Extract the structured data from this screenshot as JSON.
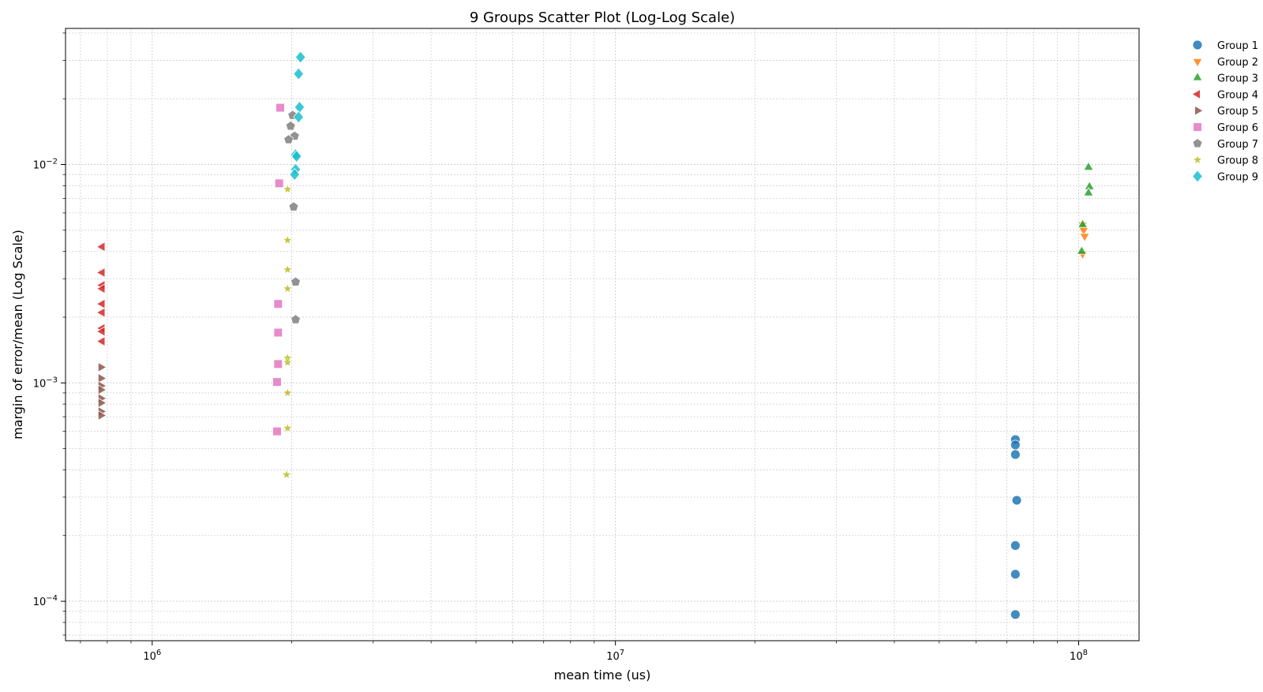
{
  "chart_data": {
    "type": "scatter",
    "title": "9 Groups Scatter Plot (Log-Log Scale)",
    "xlabel": "mean time (us)",
    "ylabel": "margin of error/mean (Log Scale)",
    "xscale": "log",
    "yscale": "log",
    "xlim": [
      650000,
      135000000
    ],
    "ylim": [
      6.6e-05,
      0.042
    ],
    "xticks": [
      {
        "value": 1000000,
        "base": "10",
        "exp": "6"
      },
      {
        "value": 10000000,
        "base": "10",
        "exp": "7"
      },
      {
        "value": 100000000,
        "base": "10",
        "exp": "8"
      }
    ],
    "yticks": [
      {
        "value": 0.0001,
        "base": "10",
        "exp": "−4"
      },
      {
        "value": 0.001,
        "base": "10",
        "exp": "−3"
      },
      {
        "value": 0.01,
        "base": "10",
        "exp": "−2"
      }
    ],
    "grid": true,
    "legend_position": "outside-right",
    "series": [
      {
        "name": "Group 1",
        "color": "#1f77b4",
        "marker": "circle",
        "points": [
          [
            73000000,
            0.00055
          ],
          [
            73000000,
            0.00052
          ],
          [
            73000000,
            0.00047
          ],
          [
            73500000,
            0.00029
          ],
          [
            73000000,
            0.00018
          ],
          [
            73000000,
            0.000133
          ],
          [
            73000000,
            8.7e-05
          ]
        ]
      },
      {
        "name": "Group 2",
        "color": "#ff7f0e",
        "marker": "triangle-down",
        "points": [
          [
            102000000,
            0.0053
          ],
          [
            102500000,
            0.005
          ],
          [
            103000000,
            0.0047
          ],
          [
            102000000,
            0.0039
          ]
        ]
      },
      {
        "name": "Group 3",
        "color": "#2ca02c",
        "marker": "triangle-up",
        "points": [
          [
            105000000,
            0.0097
          ],
          [
            105500000,
            0.0079
          ],
          [
            105000000,
            0.0074
          ],
          [
            102000000,
            0.0053
          ],
          [
            101500000,
            0.004
          ]
        ]
      },
      {
        "name": "Group 4",
        "color": "#d62728",
        "marker": "triangle-left",
        "points": [
          [
            780000,
            0.0042
          ],
          [
            780000,
            0.0032
          ],
          [
            780000,
            0.0028
          ],
          [
            780000,
            0.0027
          ],
          [
            780000,
            0.0023
          ],
          [
            780000,
            0.0021
          ],
          [
            780000,
            0.00178
          ],
          [
            780000,
            0.00172
          ],
          [
            780000,
            0.00155
          ]
        ]
      },
      {
        "name": "Group 5",
        "color": "#8c564b",
        "marker": "triangle-right",
        "points": [
          [
            775000,
            0.00118
          ],
          [
            775000,
            0.00105
          ],
          [
            775000,
            0.00097
          ],
          [
            775000,
            0.00093
          ],
          [
            775000,
            0.00085
          ],
          [
            775000,
            0.00081
          ],
          [
            775000,
            0.00074
          ],
          [
            775000,
            0.00071
          ]
        ]
      },
      {
        "name": "Group 6",
        "color": "#e377c2",
        "marker": "square",
        "points": [
          [
            1890000,
            0.0182
          ],
          [
            1880000,
            0.0082
          ],
          [
            1870000,
            0.0023
          ],
          [
            1870000,
            0.0017
          ],
          [
            1870000,
            0.00122
          ],
          [
            1860000,
            0.00101
          ],
          [
            1860000,
            0.0006
          ]
        ]
      },
      {
        "name": "Group 7",
        "color": "#7f7f7f",
        "marker": "pentagon",
        "points": [
          [
            2010000,
            0.0168
          ],
          [
            1990000,
            0.015
          ],
          [
            2030000,
            0.0135
          ],
          [
            1970000,
            0.013
          ],
          [
            2020000,
            0.0064
          ],
          [
            2040000,
            0.0029
          ],
          [
            2040000,
            0.00195
          ]
        ]
      },
      {
        "name": "Group 8",
        "color": "#bcbd22",
        "marker": "star",
        "points": [
          [
            1960000,
            0.0077
          ],
          [
            1960000,
            0.0045
          ],
          [
            1960000,
            0.0033
          ],
          [
            1960000,
            0.0027
          ],
          [
            1960000,
            0.0013
          ],
          [
            1960000,
            0.00124
          ],
          [
            1960000,
            0.0009
          ],
          [
            1960000,
            0.00062
          ],
          [
            1950000,
            0.00038
          ]
        ]
      },
      {
        "name": "Group 9",
        "color": "#17becf",
        "marker": "diamond",
        "points": [
          [
            2090000,
            0.031
          ],
          [
            2070000,
            0.026
          ],
          [
            2080000,
            0.0183
          ],
          [
            2070000,
            0.0165
          ],
          [
            2040000,
            0.0111
          ],
          [
            2050000,
            0.0109
          ],
          [
            2040000,
            0.0095
          ],
          [
            2030000,
            0.009
          ]
        ]
      }
    ]
  }
}
